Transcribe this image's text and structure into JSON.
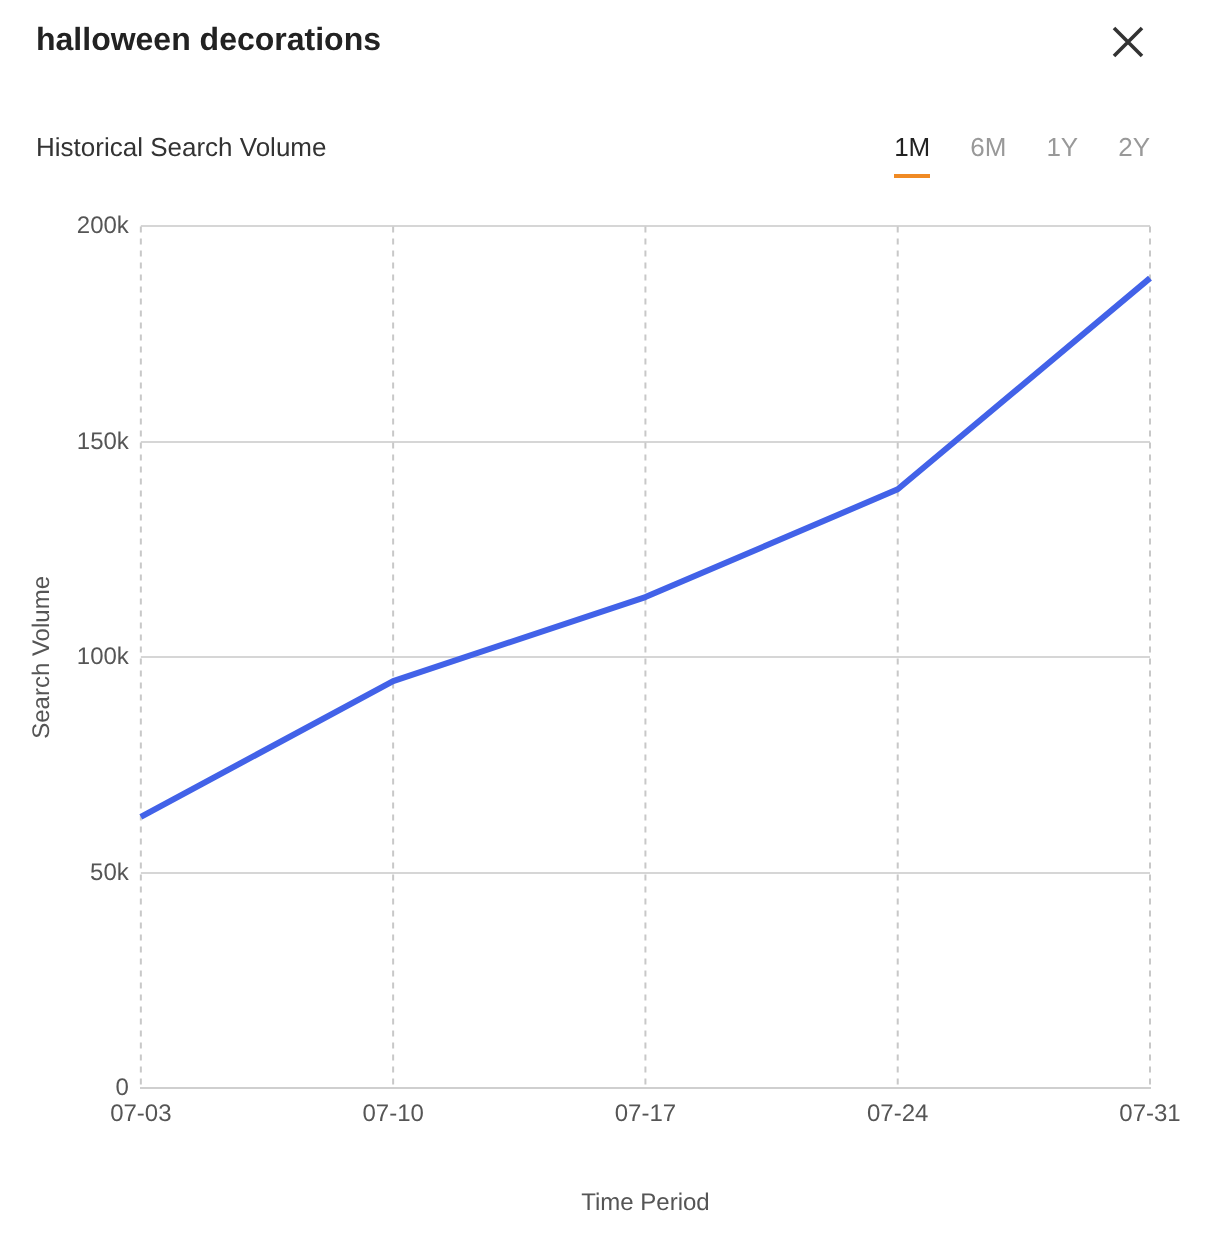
{
  "chart_data": {
    "type": "line",
    "title": "halloween decorations",
    "subtitle": "Historical Search Volume",
    "xlabel": "Time Period",
    "ylabel": "Search Volume",
    "annotations": [
      "1M",
      "6M",
      "1Y",
      "2Y"
    ],
    "categories": [
      "07-03",
      "07-10",
      "07-17",
      "07-24",
      "07-31"
    ],
    "series": [
      {
        "color": "#4262e8",
        "values": [
          63000,
          94500,
          114000,
          139000,
          188000
        ]
      }
    ],
    "ylim": [
      0,
      200000
    ],
    "yticks": [
      0,
      {
        "value": 50000,
        "label": "50k"
      },
      {
        "value": 100000,
        "label": "100k"
      },
      {
        "value": 150000,
        "label": "150k"
      },
      {
        "value": 200000,
        "label": "200k"
      }
    ],
    "grid": true,
    "legend": false,
    "marker": "none",
    "line_style": "solid"
  }
}
